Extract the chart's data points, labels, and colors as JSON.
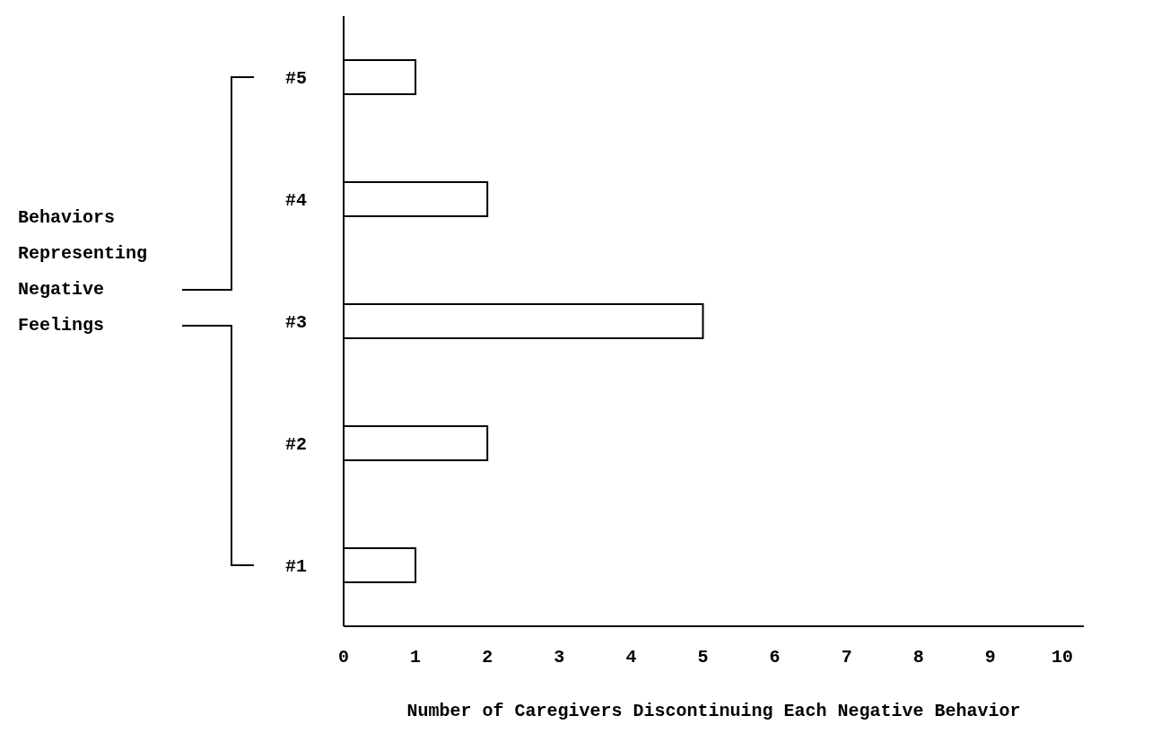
{
  "chart_data": {
    "type": "bar",
    "orientation": "horizontal",
    "categories": [
      "#5",
      "#4",
      "#3",
      "#2",
      "#1"
    ],
    "values": [
      1,
      2,
      5,
      2,
      1
    ],
    "color": "#ffffff",
    "xlim": [
      0,
      10.3
    ],
    "xticks": [
      0,
      1,
      2,
      3,
      4,
      5,
      6,
      7,
      8,
      9,
      10
    ],
    "xlabel": "Number of Caregivers Discontinuing Each Negative Behavior",
    "annotations": [
      "Behaviors Representing Negative Feelings"
    ]
  }
}
